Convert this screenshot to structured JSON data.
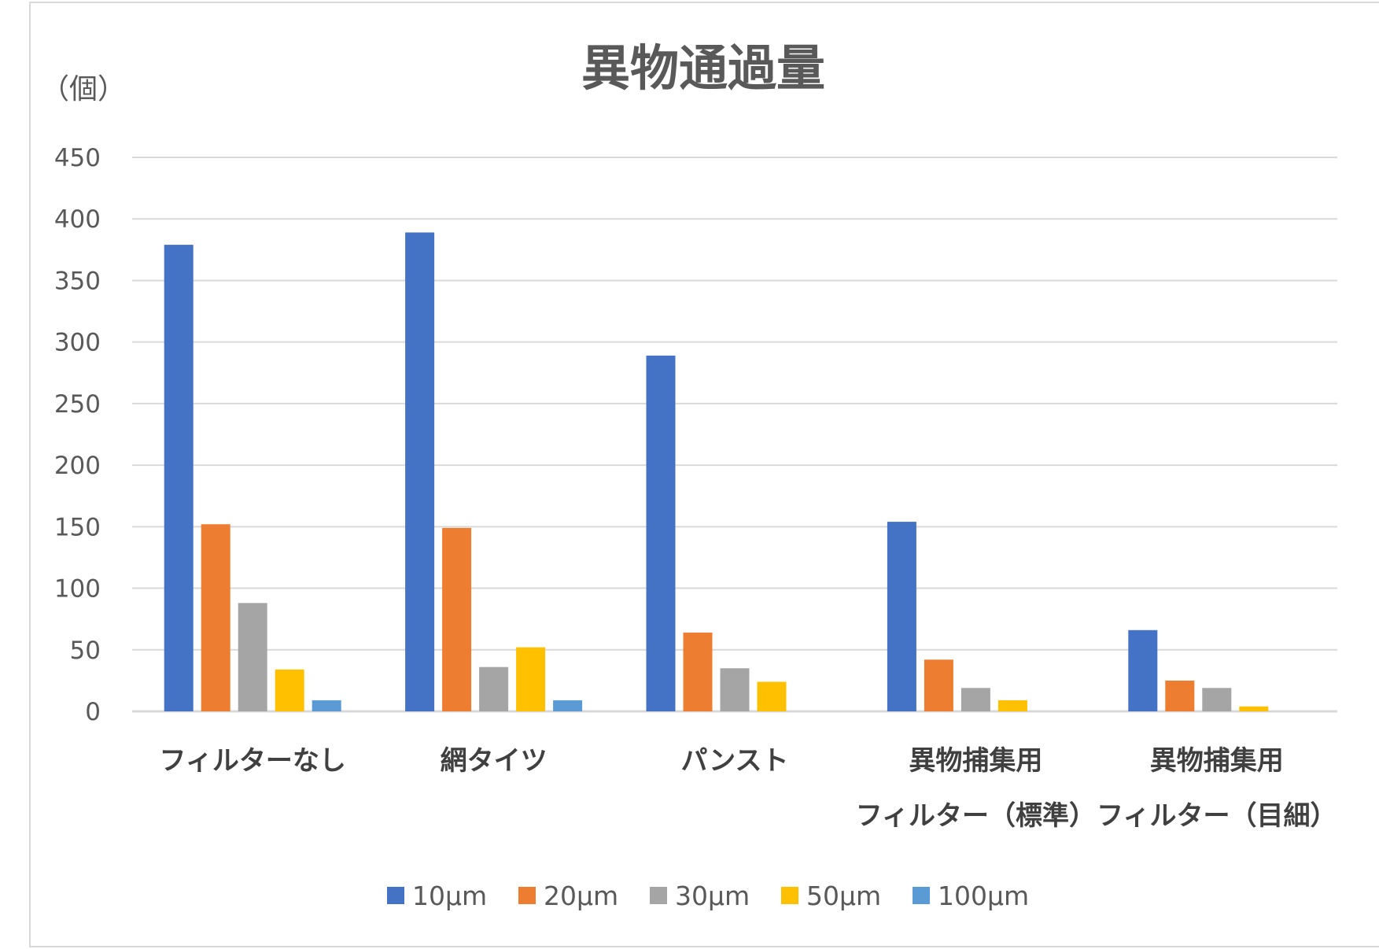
{
  "chart_data": {
    "type": "bar",
    "title": "異物通過量",
    "ylabel": "（個）",
    "xlabel": "",
    "ylim": [
      0,
      450
    ],
    "yticks": [
      0,
      50,
      100,
      150,
      200,
      250,
      300,
      350,
      400,
      450
    ],
    "grid": true,
    "legend_position": "bottom",
    "categories": [
      [
        "フィルターなし"
      ],
      [
        "網タイツ"
      ],
      [
        "パンスト"
      ],
      [
        "異物捕集用",
        "フィルター（標準）"
      ],
      [
        "異物捕集用",
        "フィルター（目細）"
      ]
    ],
    "series": [
      {
        "name": "10µm",
        "color": "#4472c4",
        "values": [
          379,
          389,
          289,
          154,
          66
        ]
      },
      {
        "name": "20µm",
        "color": "#ed7d31",
        "values": [
          152,
          149,
          64,
          42,
          25
        ]
      },
      {
        "name": "30µm",
        "color": "#a5a5a5",
        "values": [
          88,
          36,
          35,
          19,
          19
        ]
      },
      {
        "name": "50µm",
        "color": "#ffc000",
        "values": [
          34,
          52,
          24,
          9,
          4
        ]
      },
      {
        "name": "100µm",
        "color": "#5b9bd5",
        "values": [
          9,
          9,
          0,
          0,
          0
        ]
      }
    ]
  }
}
